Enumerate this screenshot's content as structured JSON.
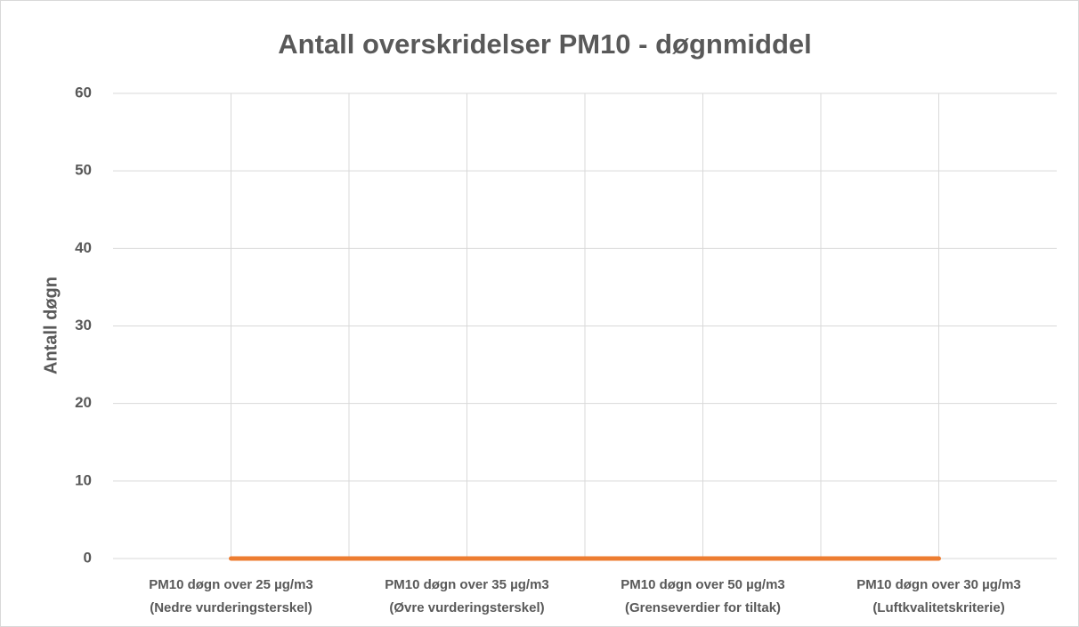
{
  "chart_data": {
    "type": "line",
    "title": "Antall overskridelser PM10 - døgnmiddel",
    "y_label": "Antall døgn",
    "categories": [
      "PM10 døgn over 25 µg/m3\n(Nedre vurderingsterskel)",
      "PM10 døgn over 35 µg/m3\n(Øvre vurderingsterskel)",
      "PM10 døgn over 50 µg/m3\n(Grenseverdier for tiltak)",
      "PM10 døgn over 30 µg/m3\n(Luftkvalitetskriterie)"
    ],
    "series": [
      {
        "color": "#ed7d31",
        "values": [
          0,
          0,
          0,
          0
        ]
      }
    ],
    "ylim": [
      0,
      60
    ],
    "yticks": [
      0,
      10,
      20,
      30,
      40,
      50,
      60
    ],
    "grid": true
  }
}
